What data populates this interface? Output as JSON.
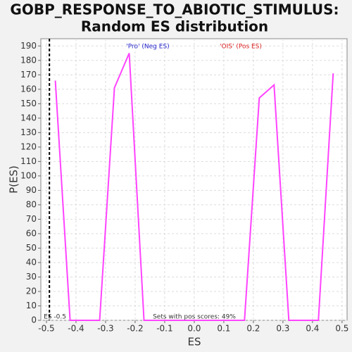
{
  "chart_data": {
    "type": "line",
    "title": [
      "GOBP_RESPONSE_TO_ABIOTIC_STIMULUS:",
      "Random ES distribution"
    ],
    "x_label": "ES",
    "y_label": "P(ES)",
    "x": [
      -0.47,
      -0.42,
      -0.32,
      -0.27,
      -0.22,
      -0.17,
      0.17,
      0.22,
      0.27,
      0.32,
      0.42,
      0.47
    ],
    "series": [
      {
        "color": "#ff44ff",
        "values": [
          166,
          0,
          0,
          161,
          185,
          0,
          0,
          154,
          163,
          0,
          0,
          171
        ]
      }
    ],
    "xlim": [
      -0.519,
      0.517
    ],
    "ylim": [
      0,
      195
    ],
    "xticks": [
      -0.5,
      -0.4,
      -0.3,
      -0.2,
      -0.1,
      {
        "value": 0,
        "label": "0.0"
      },
      0.1,
      0.2,
      0.3,
      0.4,
      0.5
    ],
    "yticks": [
      0,
      10,
      20,
      30,
      40,
      50,
      60,
      70,
      80,
      90,
      100,
      110,
      120,
      130,
      140,
      150,
      160,
      170,
      180,
      190
    ],
    "grid": true,
    "es_line": {
      "value": -0.49,
      "label": "ES -0.5"
    },
    "annotations": [
      {
        "text": "'Pro' (Neg ES)",
        "color": "#2222cc"
      },
      {
        "text": "'OIS' (Pos ES)",
        "color": "#dd2222"
      },
      {
        "text": "Sets with pos scores: 49%",
        "color": "#333333"
      }
    ]
  }
}
